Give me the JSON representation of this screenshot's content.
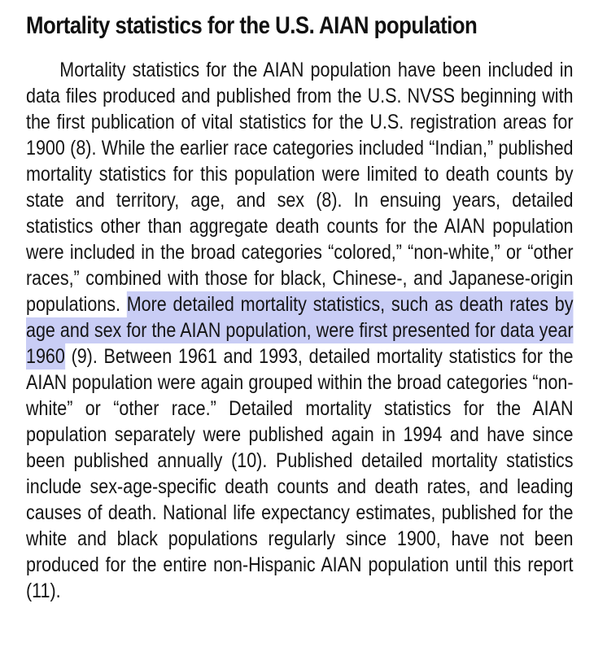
{
  "section": {
    "heading": "Mortality statistics for the U.S. AIAN population",
    "paragraph_before_highlight": "Mortality statistics for the AIAN population have been included in data files produced and published from the U.S. NVSS beginning with the first publication of vital statistics for the U.S. registration areas for 1900 (8). While the earlier race categories included “Indian,” published mortality statistics for this population were limited to death counts by state and territory, age, and sex (8). In ensuing years, detailed statistics other than aggregate death counts for the AIAN population were included in the broad categories “colored,” “non-white,” or “other races,” combined with those for black, Chinese-, and Japanese-origin populations. ",
    "highlighted_sentence": "More detailed mortality statistics, such as death rates by age and sex for the AIAN population, were first presented for data year 1960",
    "paragraph_after_highlight": " (9). Between 1961 and 1993, detailed mortality statistics for the AIAN population were again grouped within the broad categories “non-white” or “other race.” Detailed mortality statistics for the AIAN population separately were published again in 1994 and have since been published annually (10). Published detailed mortality statistics include sex-age-specific death counts and death rates, and leading causes of death. National life expectancy estimates, published for the white and black populations regularly since 1900, have not been produced for the entire non-Hispanic AIAN population until this report (11)."
  },
  "colors": {
    "highlight": "#c9cdf5",
    "text": "#151515"
  }
}
